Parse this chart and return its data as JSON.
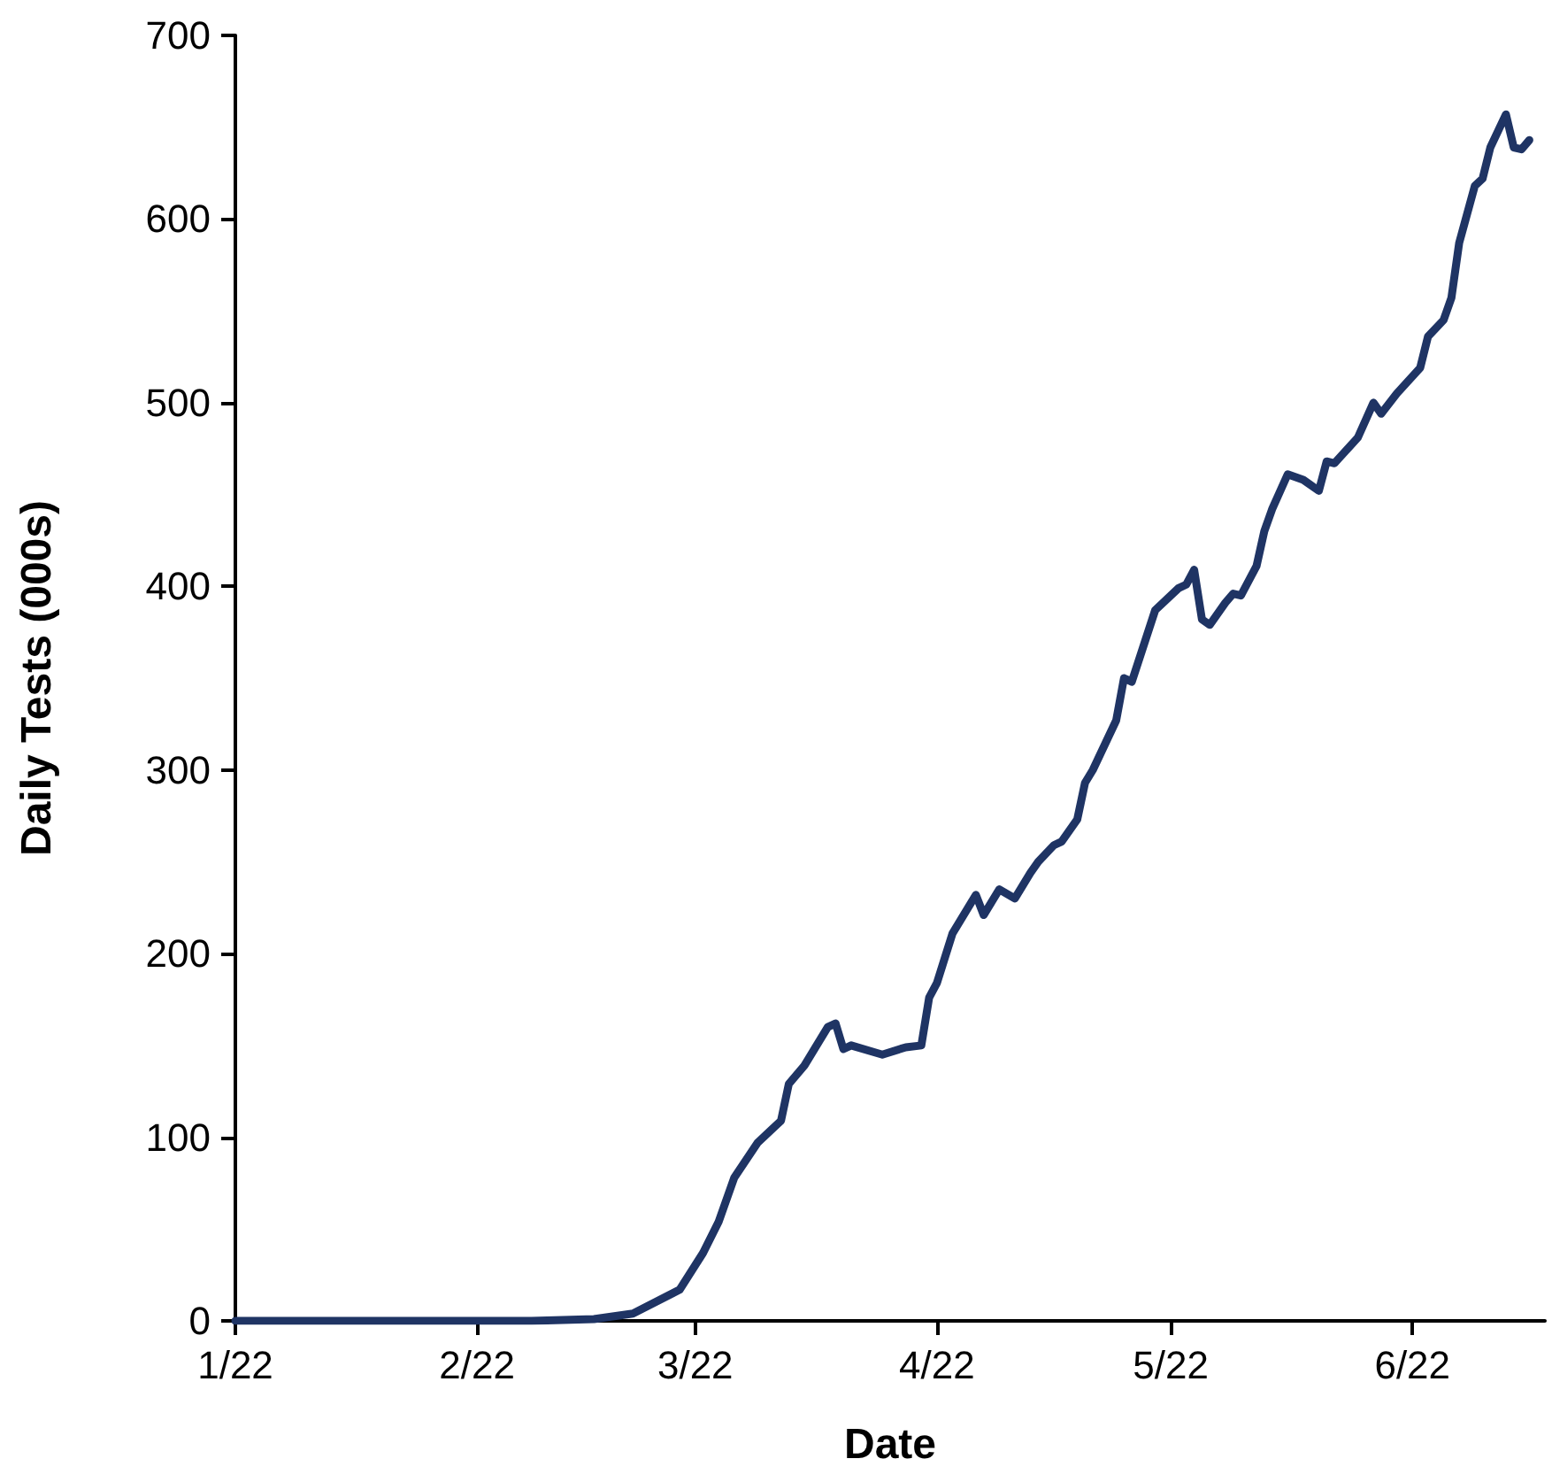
{
  "chart_data": {
    "type": "line",
    "xlabel": "Date",
    "ylabel": "Daily Tests (000s)",
    "x": [
      "--01-22",
      "--03-01",
      "--03-09",
      "--03-14",
      "--03-20",
      "--03-23",
      "--03-25",
      "--03-27",
      "--03-30",
      "--04-02",
      "--04-03",
      "--04-05",
      "--04-08",
      "--04-09",
      "--04-10",
      "--04-11",
      "--04-15",
      "--04-18",
      "--04-20",
      "--04-21",
      "--04-22",
      "--04-24",
      "--04-27",
      "--04-28",
      "--04-30",
      "--05-02",
      "--05-04",
      "--05-05",
      "--05-07",
      "--05-08",
      "--05-10",
      "--05-11",
      "--05-12",
      "--05-15",
      "--05-16",
      "--05-17",
      "--05-20",
      "--05-23",
      "--05-24",
      "--05-25",
      "--05-26",
      "--05-27",
      "--05-29",
      "--05-30",
      "--05-31",
      "--06-02",
      "--06-03",
      "--06-04",
      "--06-06",
      "--06-08",
      "--06-10",
      "--06-11",
      "--06-12",
      "--06-15",
      "--06-17",
      "--06-18",
      "--06-20",
      "--06-23",
      "--06-24",
      "--06-26",
      "--06-27",
      "--06-28",
      "--06-30",
      "--07-01",
      "--07-02",
      "--07-04",
      "--07-05",
      "--07-06",
      "--07-07"
    ],
    "series": [
      {
        "color": "#1f3464",
        "values": [
          0,
          0,
          1,
          4,
          17,
          37,
          54,
          78,
          97,
          109,
          129,
          139,
          160,
          162,
          148,
          150,
          145,
          149,
          150,
          176,
          184,
          211,
          232,
          221,
          235,
          230,
          244,
          250,
          259,
          261,
          273,
          293,
          300,
          327,
          350,
          348,
          387,
          399,
          401,
          409,
          382,
          379,
          391,
          396,
          395,
          411,
          430,
          442,
          461,
          458,
          452,
          468,
          467,
          481,
          500,
          494,
          505,
          519,
          536,
          545,
          557,
          587,
          618,
          622,
          639,
          657,
          639,
          638,
          643
        ]
      }
    ],
    "xlim": [
      "--01-22",
      "--07-09"
    ],
    "xticks": [
      {
        "value": "--01-22",
        "label": "1/22"
      },
      {
        "value": "--02-22",
        "label": "2/22"
      },
      {
        "value": "--03-22",
        "label": "3/22"
      },
      {
        "value": "--04-22",
        "label": "4/22"
      },
      {
        "value": "--05-22",
        "label": "5/22"
      },
      {
        "value": "--06-22",
        "label": "6/22"
      }
    ],
    "ylim": [
      0,
      700
    ],
    "yticks": [
      0,
      100,
      200,
      300,
      400,
      500,
      600,
      700
    ],
    "grid": false,
    "marker": "none",
    "line_style": "solid"
  }
}
